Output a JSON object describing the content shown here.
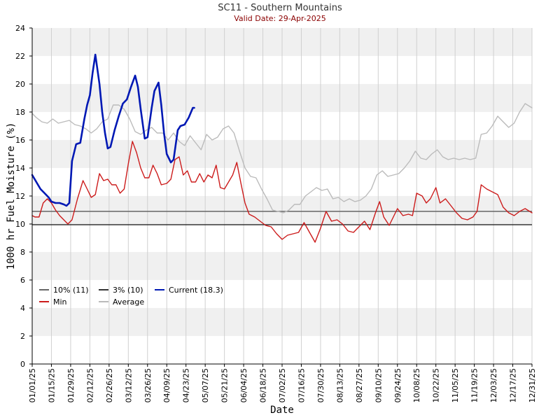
{
  "chart_data": {
    "type": "line",
    "title": "SC11 - Southern Mountains",
    "subtitle": "Valid Date: 29-Apr-2025",
    "xlabel": "Date",
    "ylabel": "1000 hr Fuel Moisture (%)",
    "ylim": [
      0,
      24
    ],
    "yticks": [
      0,
      2,
      4,
      6,
      8,
      10,
      12,
      14,
      16,
      18,
      20,
      22,
      24
    ],
    "xticks": [
      "01/01/25",
      "01/15/25",
      "01/29/25",
      "02/12/25",
      "02/26/25",
      "03/12/25",
      "03/26/25",
      "04/09/25",
      "04/23/25",
      "05/07/25",
      "05/21/25",
      "06/04/25",
      "06/18/25",
      "07/02/25",
      "07/16/25",
      "07/30/25",
      "08/13/25",
      "08/27/25",
      "09/10/25",
      "09/24/25",
      "10/08/25",
      "10/22/25",
      "11/05/25",
      "11/19/25",
      "12/03/25",
      "12/17/25",
      "12/31/25"
    ],
    "grid": true,
    "legend_position": "bottom-left",
    "thresholds": [
      {
        "name": "10% (11)",
        "value": 10.9,
        "color": "#666666"
      },
      {
        "name": "3% (10)",
        "value": 9.95,
        "color": "#333333"
      }
    ],
    "series": [
      {
        "name": "Current (18.3)",
        "color": "#0018b4",
        "x": [
          "01/01/25",
          "01/04/25",
          "01/07/25",
          "01/10/25",
          "01/13/25",
          "01/15/25",
          "01/18/25",
          "01/21/25",
          "01/24/25",
          "01/26/25",
          "01/28/25",
          "01/30/25",
          "02/02/25",
          "02/05/25",
          "02/08/25",
          "02/10/25",
          "02/12/25",
          "02/14/25",
          "02/16/25",
          "02/19/25",
          "02/21/25",
          "02/23/25",
          "02/25/25",
          "02/27/25",
          "03/02/25",
          "03/05/25",
          "03/08/25",
          "03/11/25",
          "03/14/25",
          "03/17/25",
          "03/19/25",
          "03/21/25",
          "03/24/25",
          "03/26/25",
          "03/29/25",
          "03/31/25",
          "04/03/25",
          "04/05/25",
          "04/07/25",
          "04/09/25",
          "04/12/25",
          "04/14/25",
          "04/17/25",
          "04/19/25",
          "04/22/25",
          "04/25/25",
          "04/28/25",
          "04/29/25"
        ],
        "values": [
          13.5,
          13.0,
          12.5,
          12.2,
          11.9,
          11.6,
          11.5,
          11.5,
          11.4,
          11.3,
          11.5,
          14.5,
          15.7,
          15.8,
          17.5,
          18.5,
          19.2,
          20.8,
          22.1,
          20.0,
          18.0,
          16.5,
          15.4,
          15.5,
          16.7,
          17.7,
          18.6,
          18.9,
          19.8,
          20.6,
          19.8,
          18.2,
          16.1,
          16.2,
          18.3,
          19.5,
          20.1,
          18.5,
          16.5,
          15.0,
          14.4,
          14.6,
          16.7,
          17.0,
          17.1,
          17.6,
          18.3,
          18.3
        ]
      },
      {
        "name": "Min",
        "color": "#cc1b1b",
        "x": [
          "01/01/25",
          "01/03/25",
          "01/06/25",
          "01/09/25",
          "01/12/25",
          "01/15/25",
          "01/18/25",
          "01/21/25",
          "01/24/25",
          "01/27/25",
          "01/30/25",
          "02/03/25",
          "02/07/25",
          "02/10/25",
          "02/13/25",
          "02/16/25",
          "02/19/25",
          "02/22/25",
          "02/25/25",
          "02/28/25",
          "03/03/25",
          "03/06/25",
          "03/09/25",
          "03/12/25",
          "03/15/25",
          "03/18/25",
          "03/21/25",
          "03/24/25",
          "03/27/25",
          "03/30/25",
          "04/02/25",
          "04/05/25",
          "04/09/25",
          "04/12/25",
          "04/15/25",
          "04/18/25",
          "04/21/25",
          "04/24/25",
          "04/27/25",
          "04/30/25",
          "05/03/25",
          "05/06/25",
          "05/09/25",
          "05/12/25",
          "05/15/25",
          "05/18/25",
          "05/21/25",
          "05/24/25",
          "05/27/25",
          "05/30/25",
          "06/02/25",
          "06/05/25",
          "06/08/25",
          "06/12/25",
          "06/16/25",
          "06/20/25",
          "06/24/25",
          "06/28/25",
          "07/02/25",
          "07/06/25",
          "07/10/25",
          "07/14/25",
          "07/18/25",
          "07/22/25",
          "07/26/25",
          "07/30/25",
          "08/03/25",
          "08/07/25",
          "08/11/25",
          "08/15/25",
          "08/19/25",
          "08/23/25",
          "08/27/25",
          "08/31/25",
          "09/04/25",
          "09/08/25",
          "09/11/25",
          "09/14/25",
          "09/18/25",
          "09/21/25",
          "09/24/25",
          "09/28/25",
          "10/02/25",
          "10/05/25",
          "10/08/25",
          "10/12/25",
          "10/15/25",
          "10/18/25",
          "10/22/25",
          "10/25/25",
          "10/29/25",
          "11/02/25",
          "11/06/25",
          "11/10/25",
          "11/14/25",
          "11/18/25",
          "11/21/25",
          "11/24/25",
          "11/28/25",
          "12/02/25",
          "12/06/25",
          "12/10/25",
          "12/14/25",
          "12/18/25",
          "12/22/25",
          "12/26/25",
          "12/31/25"
        ],
        "values": [
          10.6,
          10.5,
          10.5,
          11.5,
          11.8,
          11.5,
          11.0,
          10.6,
          10.3,
          10.0,
          10.3,
          11.8,
          13.1,
          12.5,
          11.9,
          12.1,
          13.6,
          13.1,
          13.2,
          12.8,
          12.8,
          12.2,
          12.5,
          14.3,
          15.9,
          15.1,
          14.0,
          13.3,
          13.3,
          14.2,
          13.6,
          12.8,
          12.9,
          13.2,
          14.6,
          14.8,
          13.5,
          13.8,
          13.0,
          13.0,
          13.6,
          13.0,
          13.5,
          13.3,
          14.2,
          12.6,
          12.5,
          13.0,
          13.5,
          14.4,
          12.9,
          11.5,
          10.7,
          10.5,
          10.2,
          9.9,
          9.8,
          9.3,
          8.9,
          9.2,
          9.3,
          9.4,
          10.1,
          9.4,
          8.7,
          9.7,
          10.9,
          10.2,
          10.3,
          10.0,
          9.5,
          9.4,
          9.8,
          10.2,
          9.6,
          10.8,
          11.6,
          10.5,
          9.9,
          10.5,
          11.1,
          10.6,
          10.7,
          10.6,
          12.2,
          12.0,
          11.5,
          11.8,
          12.6,
          11.5,
          11.8,
          11.3,
          10.8,
          10.4,
          10.3,
          10.5,
          10.9,
          12.8,
          12.5,
          12.3,
          12.1,
          11.2,
          10.8,
          10.6,
          10.9,
          11.1,
          10.8
        ]
      },
      {
        "name": "Average",
        "color": "#bbbbbb",
        "x": [
          "01/01/25",
          "01/04/25",
          "01/08/25",
          "01/12/25",
          "01/16/25",
          "01/20/25",
          "01/24/25",
          "01/28/25",
          "02/01/25",
          "02/05/25",
          "02/09/25",
          "02/13/25",
          "02/17/25",
          "02/21/25",
          "02/25/25",
          "03/01/25",
          "03/05/25",
          "03/09/25",
          "03/13/25",
          "03/17/25",
          "03/21/25",
          "03/25/25",
          "03/29/25",
          "04/02/25",
          "04/06/25",
          "04/10/25",
          "04/14/25",
          "04/18/25",
          "04/22/25",
          "04/26/25",
          "04/30/25",
          "05/04/25",
          "05/08/25",
          "05/12/25",
          "05/16/25",
          "05/20/25",
          "05/24/25",
          "05/28/25",
          "06/01/25",
          "06/05/25",
          "06/09/25",
          "06/13/25",
          "06/17/25",
          "06/21/25",
          "06/25/25",
          "06/29/25",
          "07/03/25",
          "07/07/25",
          "07/11/25",
          "07/15/25",
          "07/19/25",
          "07/23/25",
          "07/27/25",
          "07/31/25",
          "08/04/25",
          "08/08/25",
          "08/12/25",
          "08/16/25",
          "08/20/25",
          "08/24/25",
          "08/28/25",
          "09/01/25",
          "09/05/25",
          "09/09/25",
          "09/13/25",
          "09/17/25",
          "09/21/25",
          "09/25/25",
          "09/29/25",
          "10/03/25",
          "10/07/25",
          "10/11/25",
          "10/15/25",
          "10/19/25",
          "10/23/25",
          "10/27/25",
          "10/31/25",
          "11/04/25",
          "11/08/25",
          "11/12/25",
          "11/16/25",
          "11/20/25",
          "11/24/25",
          "11/28/25",
          "12/02/25",
          "12/06/25",
          "12/10/25",
          "12/14/25",
          "12/18/25",
          "12/22/25",
          "12/26/25",
          "12/31/25"
        ],
        "values": [
          17.9,
          17.6,
          17.3,
          17.2,
          17.5,
          17.2,
          17.3,
          17.4,
          17.1,
          17.0,
          16.8,
          16.5,
          16.8,
          17.3,
          17.5,
          18.5,
          18.5,
          18.2,
          17.5,
          16.6,
          16.4,
          16.7,
          16.9,
          16.5,
          16.5,
          16.0,
          16.5,
          15.9,
          15.6,
          16.3,
          15.8,
          15.3,
          16.4,
          16.0,
          16.2,
          16.8,
          17.0,
          16.5,
          15.2,
          14.0,
          13.4,
          13.3,
          12.5,
          11.8,
          11.0,
          10.9,
          10.8,
          11.0,
          11.4,
          11.4,
          12.0,
          12.3,
          12.6,
          12.4,
          12.5,
          11.8,
          11.9,
          11.6,
          11.8,
          11.6,
          11.7,
          12.0,
          12.5,
          13.5,
          13.8,
          13.4,
          13.5,
          13.6,
          14.0,
          14.5,
          15.2,
          14.7,
          14.6,
          15.0,
          15.3,
          14.8,
          14.6,
          14.7,
          14.6,
          14.7,
          14.6,
          14.7,
          16.4,
          16.5,
          17.0,
          17.7,
          17.3,
          16.9,
          17.2,
          18.0,
          18.6,
          18.3
        ]
      }
    ]
  }
}
